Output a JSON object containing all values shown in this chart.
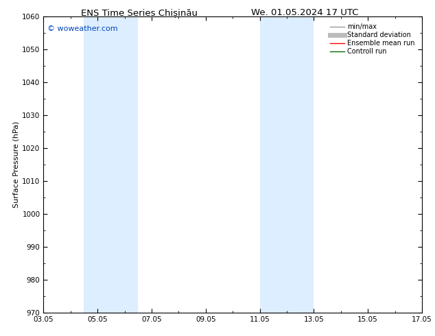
{
  "title_left": "ENS Time Series Chișinău",
  "title_right": "We. 01.05.2024 17 UTC",
  "ylabel": "Surface Pressure (hPa)",
  "ylim": [
    970,
    1060
  ],
  "yticks": [
    970,
    980,
    990,
    1000,
    1010,
    1020,
    1030,
    1040,
    1050,
    1060
  ],
  "xtick_labels": [
    "03.05",
    "05.05",
    "07.05",
    "09.05",
    "11.05",
    "13.05",
    "15.05",
    "17.05"
  ],
  "xtick_positions": [
    0,
    2,
    4,
    6,
    8,
    10,
    12,
    14
  ],
  "shaded_bands": [
    {
      "x_start": 1.5,
      "x_end": 3.5
    },
    {
      "x_start": 8.0,
      "x_end": 10.0
    }
  ],
  "shade_color": "#dceeff",
  "background_color": "#ffffff",
  "watermark": "© woweather.com",
  "watermark_color": "#0044bb",
  "legend_items": [
    {
      "label": "min/max",
      "color": "#999999",
      "linestyle": "-",
      "linewidth": 1.0
    },
    {
      "label": "Standard deviation",
      "color": "#bbbbbb",
      "linestyle": "-",
      "linewidth": 5
    },
    {
      "label": "Ensemble mean run",
      "color": "#ff0000",
      "linestyle": "-",
      "linewidth": 1.0
    },
    {
      "label": "Controll run",
      "color": "#006600",
      "linestyle": "-",
      "linewidth": 1.0
    }
  ],
  "tick_color": "#000000",
  "spine_color": "#000000",
  "title_fontsize": 9.5,
  "ylabel_fontsize": 8,
  "tick_fontsize": 7.5,
  "legend_fontsize": 7,
  "watermark_fontsize": 8
}
